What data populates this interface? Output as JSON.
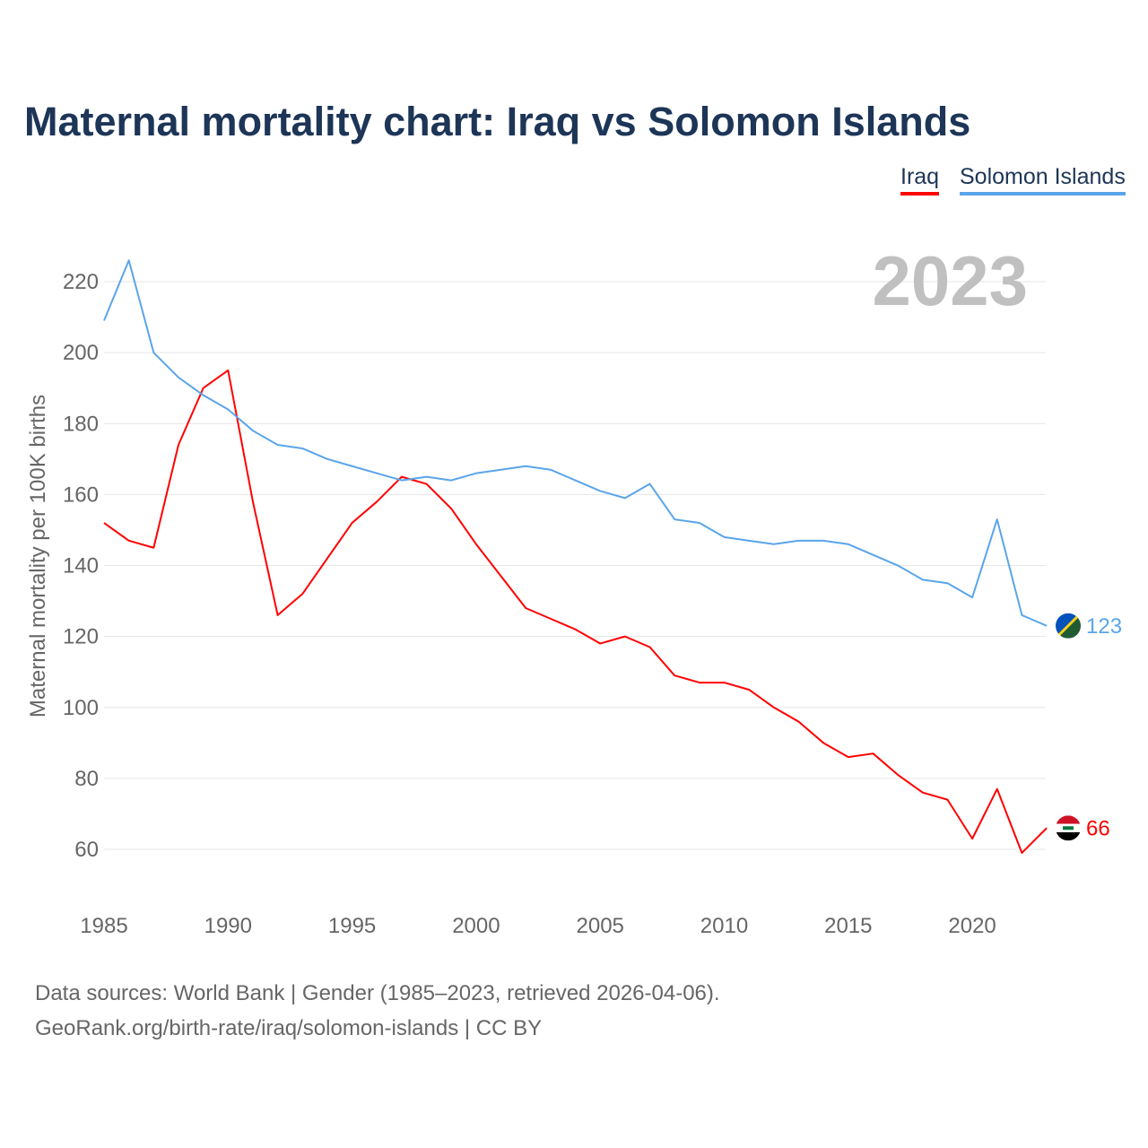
{
  "chart_data": {
    "type": "line",
    "title": "Maternal mortality chart: Iraq vs Solomon Islands",
    "ylabel": "Maternal mortality per 100K births",
    "xlabel": "",
    "year_label": "2023",
    "ylim": [
      50,
      232
    ],
    "xlim": [
      1985,
      2023
    ],
    "yticks": [
      60,
      80,
      100,
      120,
      140,
      160,
      180,
      200,
      220
    ],
    "xticks": [
      1985,
      1990,
      1995,
      2000,
      2005,
      2010,
      2015,
      2020
    ],
    "grid": true,
    "legend_position": "top-right",
    "x": [
      1985,
      1986,
      1987,
      1988,
      1989,
      1990,
      1991,
      1992,
      1993,
      1994,
      1995,
      1996,
      1997,
      1998,
      1999,
      2000,
      2001,
      2002,
      2003,
      2004,
      2005,
      2006,
      2007,
      2008,
      2009,
      2010,
      2011,
      2012,
      2013,
      2014,
      2015,
      2016,
      2017,
      2018,
      2019,
      2020,
      2021,
      2022,
      2023
    ],
    "series": [
      {
        "name": "Iraq",
        "color": "#ff0000",
        "end_label": "66",
        "values": [
          152,
          147,
          145,
          174,
          190,
          195,
          158,
          126,
          132,
          142,
          152,
          158,
          165,
          163,
          156,
          146,
          137,
          128,
          125,
          122,
          118,
          120,
          117,
          109,
          107,
          107,
          105,
          100,
          96,
          90,
          86,
          87,
          81,
          76,
          74,
          63,
          77,
          59,
          66
        ]
      },
      {
        "name": "Solomon Islands",
        "color": "#5aa5ea",
        "end_label": "123",
        "values": [
          209,
          226,
          200,
          193,
          188,
          184,
          178,
          174,
          173,
          170,
          168,
          166,
          164,
          165,
          164,
          166,
          167,
          168,
          167,
          164,
          161,
          159,
          163,
          153,
          152,
          148,
          147,
          146,
          147,
          147,
          146,
          143,
          140,
          136,
          135,
          131,
          153,
          126,
          123
        ]
      }
    ]
  },
  "source_lines": [
    "Data sources: World Bank | Gender (1985–2023, retrieved 2026-04-06).",
    "GeoRank.org/birth-rate/iraq/solomon-islands | CC BY"
  ]
}
